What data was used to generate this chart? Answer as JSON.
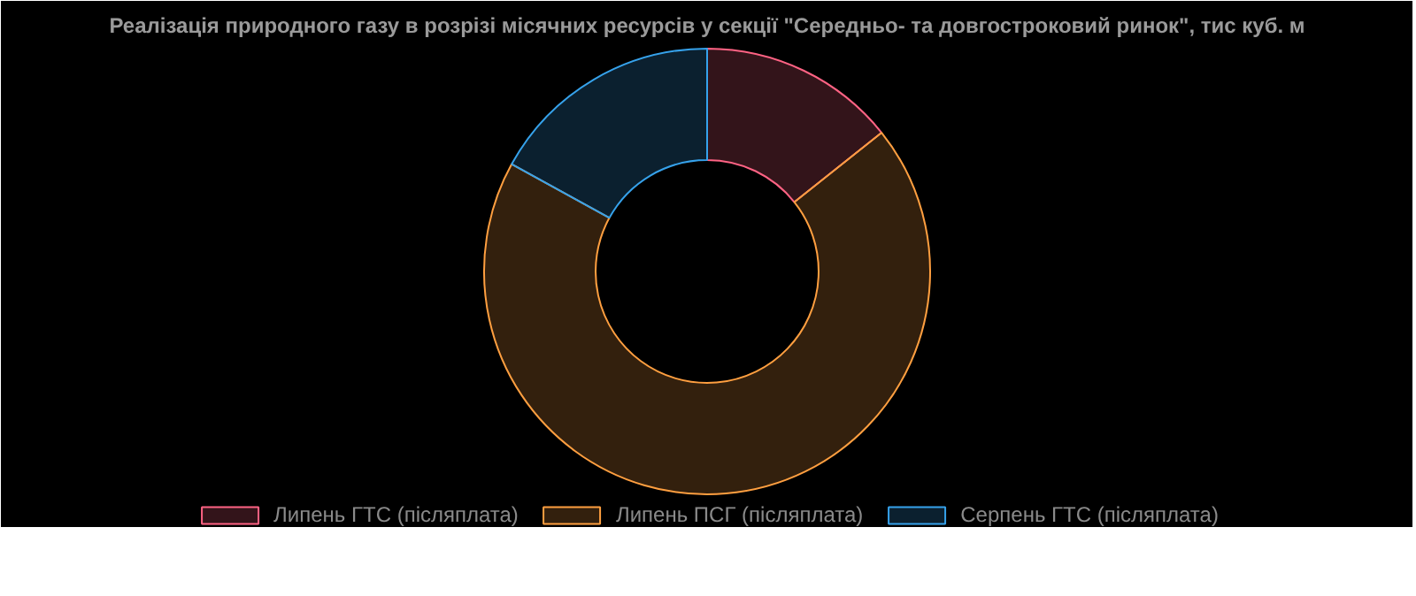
{
  "chart_data": {
    "type": "donut",
    "title": "Реалізація природного газу в розрізі місячних ресурсів у секції \"Середньо- та довгостроковий ринок\", тис куб. м",
    "categories": [
      "Липень ГТС (післяплата)",
      "Липень ПСГ (післяплата)",
      "Серпень ГТС (післяплата)"
    ],
    "values": [
      14.3,
      68.7,
      17.0
    ],
    "colors": [
      "#ff6384",
      "#ff9f40",
      "#36a2eb"
    ],
    "legend": "bottom"
  }
}
